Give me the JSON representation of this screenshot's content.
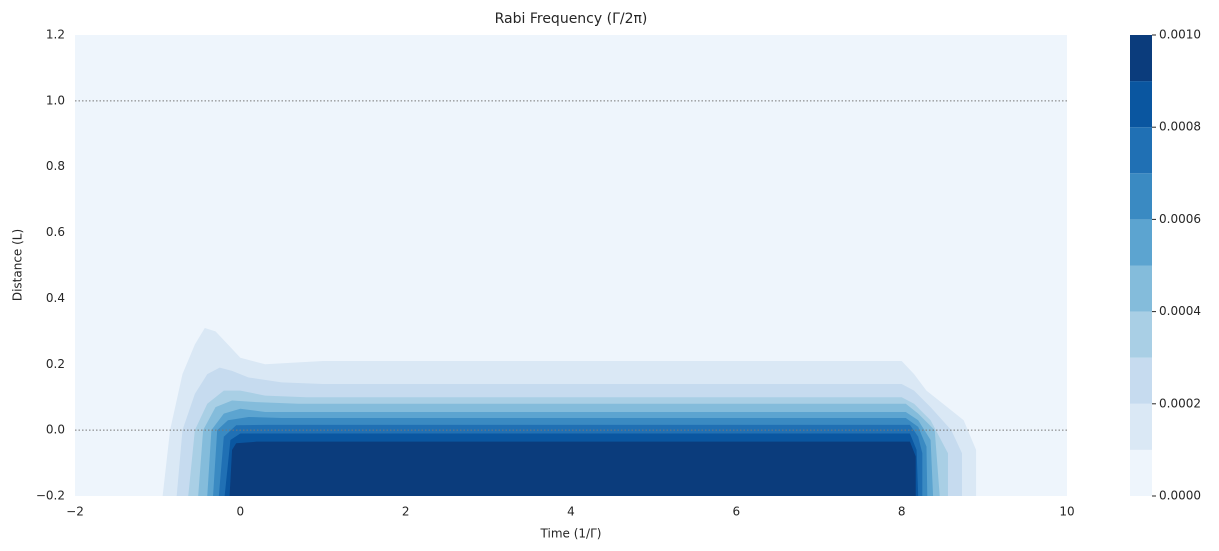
{
  "chart_data": {
    "type": "contourf",
    "title": "Rabi Frequency (Γ/2π)",
    "xlabel": "Time (1/Γ)",
    "ylabel": "Distance (L)",
    "xlim": [
      -2,
      10
    ],
    "ylim": [
      -0.2,
      1.2
    ],
    "xticks": [
      {
        "value": -2,
        "label": "−2"
      },
      0,
      2,
      4,
      6,
      8,
      10
    ],
    "yticks": [
      {
        "value": -0.2,
        "label": "−0.2"
      },
      {
        "value": 0,
        "label": "0.0"
      },
      0.2,
      0.4,
      0.6,
      0.8,
      {
        "value": 1,
        "label": "1.0"
      },
      1.2
    ],
    "hlines": [
      1,
      0
    ],
    "levels": [
      0,
      0.0001,
      0.0002,
      0.0003,
      0.0004,
      0.0005,
      0.0006,
      0.0007,
      0.0008,
      0.0009,
      0.001
    ],
    "colors": [
      "#eef5fc",
      "#dae8f5",
      "#c6dbef",
      "#a9cfe5",
      "#84bcdb",
      "#5ca4d0",
      "#3a8ac2",
      "#2070b4",
      "#0a56a0",
      "#0b3c7c"
    ],
    "colorbar_ticks": [
      {
        "value": 0,
        "label": "0.0000"
      },
      {
        "value": 0.0002,
        "label": "0.0002"
      },
      {
        "value": 0.0004,
        "label": "0.0004"
      },
      {
        "value": 0.0006,
        "label": "0.0006"
      },
      {
        "value": 0.0008,
        "label": "0.0008"
      },
      {
        "value": 0.001,
        "label": "0.0010"
      }
    ],
    "contours": [
      {
        "level": 0.0001,
        "x": [
          -0.94,
          -0.85,
          -0.7,
          -0.55,
          -0.43,
          -0.3,
          -0.15,
          0.0,
          0.3,
          1.0,
          8.0,
          8.15,
          8.3,
          8.5,
          8.75,
          8.9,
          8.9
        ],
        "y": [
          -0.2,
          0.0,
          0.17,
          0.26,
          0.31,
          0.3,
          0.26,
          0.22,
          0.2,
          0.21,
          0.21,
          0.17,
          0.12,
          0.08,
          0.03,
          -0.06,
          -0.2
        ]
      },
      {
        "level": 0.0002,
        "x": [
          -0.77,
          -0.7,
          -0.55,
          -0.4,
          -0.25,
          -0.1,
          0.1,
          0.5,
          1.0,
          8.0,
          8.15,
          8.35,
          8.6,
          8.73,
          8.73
        ],
        "y": [
          -0.2,
          0.0,
          0.11,
          0.17,
          0.19,
          0.18,
          0.16,
          0.145,
          0.14,
          0.14,
          0.12,
          0.07,
          0.0,
          -0.07,
          -0.2
        ]
      },
      {
        "level": 0.0003,
        "x": [
          -0.63,
          -0.55,
          -0.4,
          -0.2,
          0.0,
          0.3,
          0.8,
          8.0,
          8.15,
          8.35,
          8.56,
          8.56
        ],
        "y": [
          -0.2,
          0.0,
          0.08,
          0.12,
          0.12,
          0.105,
          0.1,
          0.1,
          0.08,
          0.03,
          -0.07,
          -0.2
        ]
      },
      {
        "level": 0.0004,
        "x": [
          -0.51,
          -0.45,
          -0.3,
          -0.1,
          0.2,
          0.7,
          8.05,
          8.2,
          8.4,
          8.46
        ],
        "y": [
          -0.2,
          0.0,
          0.07,
          0.09,
          0.085,
          0.08,
          0.08,
          0.05,
          0.0,
          -0.2
        ]
      },
      {
        "level": 0.0005,
        "x": [
          -0.4,
          -0.35,
          -0.2,
          0.0,
          0.3,
          0.8,
          8.05,
          8.2,
          8.35,
          8.38
        ],
        "y": [
          -0.2,
          0.0,
          0.05,
          0.065,
          0.055,
          0.055,
          0.055,
          0.03,
          -0.03,
          -0.2
        ]
      },
      {
        "level": 0.0006,
        "x": [
          -0.33,
          -0.28,
          -0.15,
          0.1,
          0.5,
          8.05,
          8.2,
          8.3,
          8.31
        ],
        "y": [
          -0.2,
          0.0,
          0.03,
          0.04,
          0.037,
          0.037,
          0.01,
          -0.05,
          -0.2
        ]
      },
      {
        "level": 0.0007,
        "x": [
          -0.26,
          -0.2,
          -0.05,
          0.3,
          8.1,
          8.2,
          8.25,
          8.25
        ],
        "y": [
          -0.2,
          -0.02,
          0.015,
          0.016,
          0.016,
          -0.02,
          -0.07,
          -0.2
        ]
      },
      {
        "level": 0.0008,
        "x": [
          -0.19,
          -0.12,
          0.0,
          0.4,
          8.1,
          8.18,
          8.2
        ],
        "y": [
          -0.2,
          -0.03,
          -0.01,
          -0.01,
          -0.01,
          -0.06,
          -0.2
        ]
      },
      {
        "level": 0.0009,
        "x": [
          -0.13,
          -0.1,
          -0.05,
          0.2,
          8.1,
          8.17,
          8.17
        ],
        "y": [
          -0.2,
          -0.06,
          -0.04,
          -0.035,
          -0.035,
          -0.08,
          -0.2
        ]
      }
    ]
  }
}
